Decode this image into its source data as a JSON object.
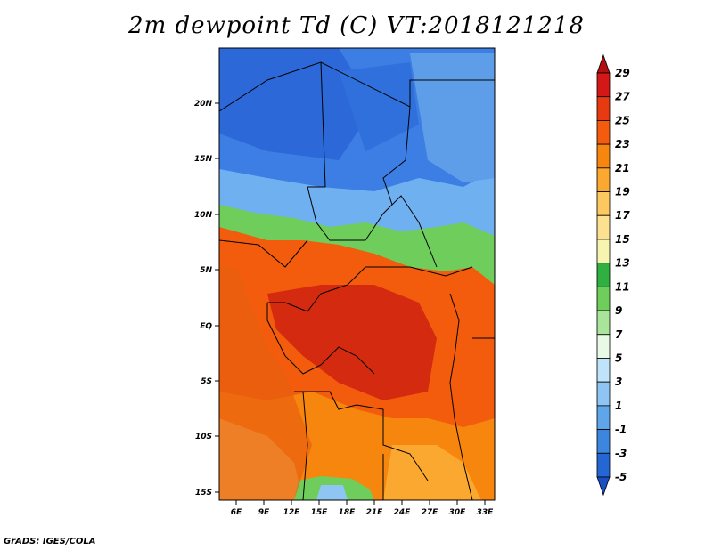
{
  "title": "2m dewpoint Td (C) VT:2018121218",
  "footer": "GrADS: IGES/COLA",
  "lat_labels": [
    "20N",
    "15N",
    "10N",
    "5N",
    "EQ",
    "5S",
    "10S",
    "15S"
  ],
  "lon_labels": [
    "6E",
    "9E",
    "12E",
    "15E",
    "18E",
    "21E",
    "24E",
    "27E",
    "30E",
    "33E"
  ],
  "colorbar": {
    "levels": [
      "29",
      "27",
      "25",
      "23",
      "21",
      "19",
      "17",
      "15",
      "13",
      "11",
      "9",
      "7",
      "5",
      "3",
      "1",
      "-1",
      "-3",
      "-5"
    ],
    "colors": [
      "#b01010",
      "#d41818",
      "#e83a10",
      "#f25c0c",
      "#f7860e",
      "#fba830",
      "#fdc860",
      "#fde190",
      "#f7f4b0",
      "#2fb040",
      "#6fcd5c",
      "#a8e49a",
      "#e8fae6",
      "#bfe3fb",
      "#8ec5f2",
      "#5ea5ea",
      "#3c86e0",
      "#2466d4",
      "#1a4fc4"
    ]
  },
  "map": {
    "regions": [
      {
        "name": "dry-north",
        "color": "#3c7ee4"
      },
      {
        "name": "sahel-band",
        "color": "#6fb0f0"
      },
      {
        "name": "transition",
        "color": "#6fcd5c"
      },
      {
        "name": "humid-congo",
        "color": "#e83a10"
      },
      {
        "name": "core-congo",
        "color": "#d42a10"
      },
      {
        "name": "southern-savanna",
        "color": "#f7860e"
      },
      {
        "name": "south-dry",
        "color": "#fdc860"
      }
    ]
  }
}
